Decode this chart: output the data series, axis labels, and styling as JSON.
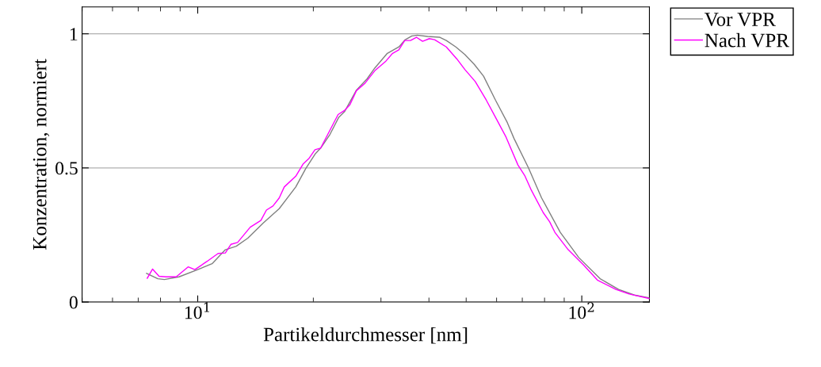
{
  "chart_data": {
    "type": "line",
    "xlabel": "Partikeldurchmesser [nm]",
    "ylabel": "Konzentration, normiert",
    "log": "x",
    "xlim": [
      5,
      150
    ],
    "ylim": [
      0,
      1.1
    ],
    "xticks": [
      {
        "value": 10,
        "label": "10$^{1}$"
      },
      {
        "value": 100,
        "label": "10$^{2}$"
      }
    ],
    "yticks": [
      0,
      0.5,
      1
    ],
    "grid": "y",
    "legend": "top right",
    "marker": "none",
    "line_style": "solid",
    "series": [
      {
        "name": "Vor VPR",
        "color": "#808080",
        "x": [
          7.36,
          7.87,
          8.19,
          8.94,
          10,
          10.9,
          11.8,
          12.6,
          13.5,
          14.8,
          16.3,
          18.0,
          19.1,
          20.2,
          20.9,
          22.1,
          23.3,
          24.1,
          25.9,
          27.6,
          28.9,
          31.1,
          33.4,
          34.7,
          36.1,
          37.3,
          39.7,
          42.7,
          44.4,
          47.0,
          49.6,
          52.5,
          55.5,
          59.6,
          64.0,
          66.6,
          72.6,
          78.6,
          87.9,
          98.2,
          111.6,
          124.7,
          137.1,
          150
        ],
        "values": [
          0.107,
          0.087,
          0.084,
          0.094,
          0.121,
          0.143,
          0.195,
          0.208,
          0.238,
          0.294,
          0.348,
          0.429,
          0.497,
          0.551,
          0.574,
          0.625,
          0.689,
          0.709,
          0.79,
          0.832,
          0.872,
          0.926,
          0.951,
          0.978,
          0.992,
          0.995,
          0.99,
          0.987,
          0.975,
          0.951,
          0.923,
          0.886,
          0.842,
          0.753,
          0.669,
          0.61,
          0.501,
          0.388,
          0.26,
          0.166,
          0.087,
          0.047,
          0.026,
          0.015
        ]
      },
      {
        "name": "Nach VPR",
        "color": "#ff00ff",
        "x": [
          7.39,
          7.63,
          7.93,
          8.26,
          8.79,
          9.44,
          9.83,
          10.56,
          11.3,
          11.8,
          12.2,
          12.7,
          13.7,
          14.6,
          15.1,
          15.7,
          16.3,
          16.8,
          18.0,
          18.8,
          19.5,
          20.2,
          20.9,
          23.2,
          24.1,
          24.9,
          25.9,
          27.2,
          28.9,
          30.8,
          32.1,
          33.4,
          34.6,
          35.8,
          37.1,
          38.5,
          40.1,
          41.4,
          44.4,
          47.3,
          49.6,
          52.8,
          56.4,
          59.6,
          63.5,
          68.2,
          71.0,
          73.9,
          79.3,
          82.5,
          85.1,
          92.2,
          101.4,
          109.8,
          122.7,
          132.8,
          150
        ],
        "values": [
          0.089,
          0.123,
          0.096,
          0.094,
          0.094,
          0.131,
          0.121,
          0.151,
          0.181,
          0.183,
          0.215,
          0.222,
          0.279,
          0.304,
          0.343,
          0.358,
          0.388,
          0.429,
          0.469,
          0.514,
          0.536,
          0.568,
          0.574,
          0.699,
          0.714,
          0.735,
          0.788,
          0.814,
          0.862,
          0.896,
          0.926,
          0.94,
          0.975,
          0.975,
          0.987,
          0.972,
          0.982,
          0.978,
          0.951,
          0.906,
          0.867,
          0.822,
          0.753,
          0.689,
          0.615,
          0.511,
          0.472,
          0.417,
          0.334,
          0.299,
          0.26,
          0.195,
          0.136,
          0.082,
          0.047,
          0.03,
          0.013
        ]
      }
    ]
  }
}
